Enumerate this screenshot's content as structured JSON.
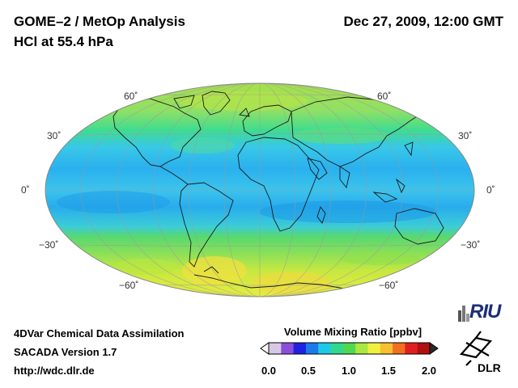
{
  "header": {
    "title_line1": "GOME–2 / MetOp Analysis",
    "title_line2": "HCl at 55.4 hPa",
    "datetime": "Dec 27, 2009, 12:00 GMT"
  },
  "map": {
    "projection": "Hammer-Aitoff (global)",
    "lat_labels": {
      "n60": "60˚",
      "n30": "30˚",
      "eq": "0˚",
      "s30": "−30˚",
      "s60": "−60˚"
    }
  },
  "footer": {
    "line1": "4DVar Chemical Data Assimilation",
    "line2": "SACADA Version 1.7",
    "url": "http://wdc.dlr.de"
  },
  "colorbar": {
    "title": "Volume Mixing Ratio [ppbv]",
    "ticks": [
      "0.0",
      "0.5",
      "1.0",
      "1.5",
      "2.0"
    ],
    "colors": [
      "#d8c8e8",
      "#8a4fd8",
      "#2020e0",
      "#1a7ae8",
      "#20c8e8",
      "#30d890",
      "#50d850",
      "#a8e840",
      "#f0f040",
      "#f8c030",
      "#f07020",
      "#e02020",
      "#b01010"
    ]
  },
  "logos": {
    "riu": "RIU",
    "dlr": "DLR"
  }
}
